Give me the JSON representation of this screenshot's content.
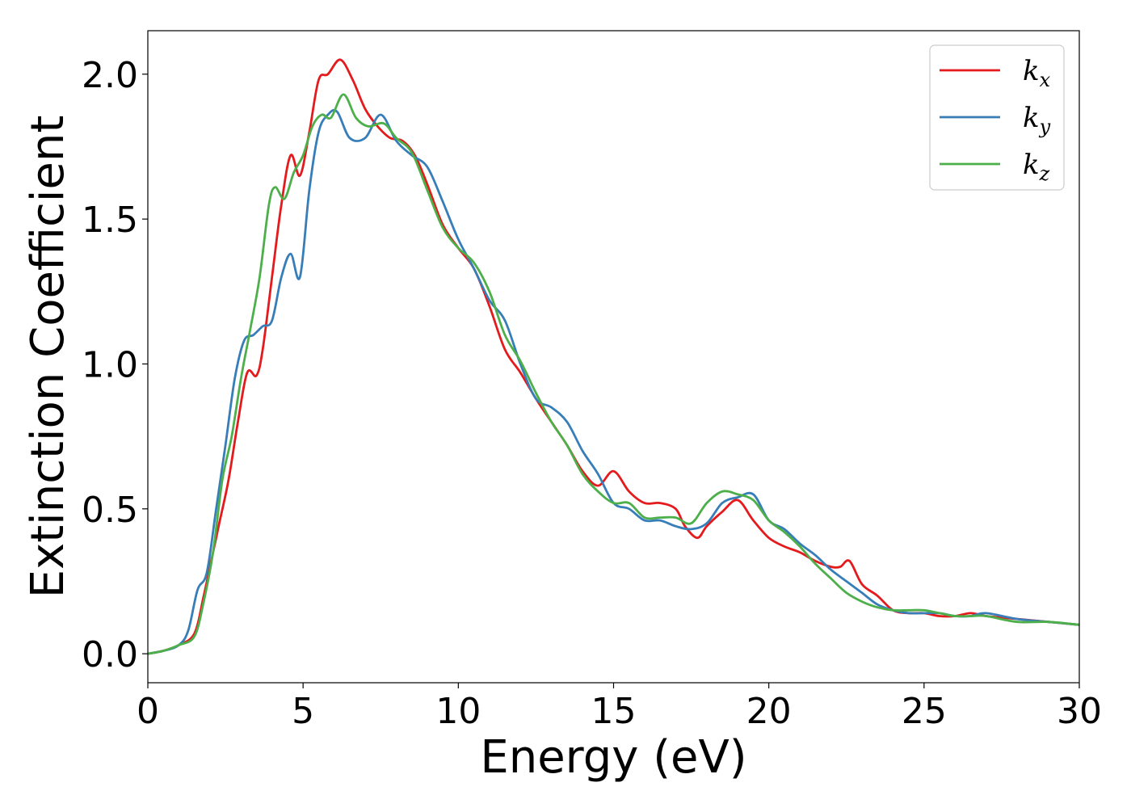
{
  "chart_data": {
    "type": "line",
    "xlabel": "Energy (eV)",
    "ylabel": "Extinction Coefficient",
    "xlim": [
      0,
      30
    ],
    "ylim": [
      -0.1,
      2.15
    ],
    "xticks": [
      0,
      5,
      10,
      15,
      20,
      25,
      30
    ],
    "xtick_labels": [
      "0",
      "5",
      "10",
      "15",
      "20",
      "25",
      "30"
    ],
    "yticks": [
      0.0,
      0.5,
      1.0,
      1.5,
      2.0
    ],
    "ytick_labels": [
      "0.0",
      "0.5",
      "1.0",
      "1.5",
      "2.0"
    ],
    "grid": false,
    "legend_position": "top-right",
    "series": [
      {
        "name": "k",
        "subscript": "x",
        "color": "#e41a1c",
        "x": [
          0,
          0.5,
          1.0,
          1.5,
          1.8,
          2.0,
          2.3,
          2.6,
          2.9,
          3.2,
          3.5,
          3.7,
          4.0,
          4.3,
          4.6,
          4.9,
          5.2,
          5.5,
          5.8,
          6.2,
          6.6,
          7.0,
          7.4,
          7.8,
          8.2,
          8.6,
          9.0,
          9.5,
          10.0,
          10.5,
          11.0,
          11.5,
          12.0,
          12.5,
          13.0,
          13.5,
          14.0,
          14.5,
          15.0,
          15.5,
          16.0,
          16.5,
          17.0,
          17.3,
          17.7,
          18.0,
          18.5,
          19.0,
          19.5,
          20.0,
          20.5,
          21.0,
          21.5,
          22.0,
          22.3,
          22.6,
          23.0,
          23.5,
          24.0,
          24.5,
          25.0,
          25.5,
          26.0,
          26.5,
          27.0,
          28.0,
          29.0,
          30.0
        ],
        "y": [
          0.0,
          0.01,
          0.03,
          0.07,
          0.2,
          0.3,
          0.45,
          0.6,
          0.8,
          0.97,
          0.96,
          1.05,
          1.3,
          1.55,
          1.72,
          1.65,
          1.8,
          1.98,
          2.0,
          2.05,
          1.98,
          1.88,
          1.82,
          1.78,
          1.77,
          1.72,
          1.62,
          1.48,
          1.4,
          1.33,
          1.2,
          1.05,
          0.97,
          0.88,
          0.8,
          0.72,
          0.63,
          0.58,
          0.63,
          0.56,
          0.52,
          0.52,
          0.5,
          0.44,
          0.4,
          0.44,
          0.49,
          0.53,
          0.46,
          0.4,
          0.37,
          0.35,
          0.32,
          0.3,
          0.3,
          0.32,
          0.24,
          0.2,
          0.15,
          0.14,
          0.14,
          0.13,
          0.13,
          0.14,
          0.13,
          0.12,
          0.11,
          0.1
        ]
      },
      {
        "name": "k",
        "subscript": "y",
        "color": "#377eb8",
        "x": [
          0,
          0.5,
          1.0,
          1.3,
          1.6,
          1.9,
          2.2,
          2.5,
          2.8,
          3.1,
          3.4,
          3.7,
          4.0,
          4.3,
          4.6,
          4.9,
          5.2,
          5.5,
          5.8,
          6.1,
          6.5,
          7.0,
          7.5,
          8.0,
          8.5,
          9.0,
          9.5,
          10.0,
          10.5,
          11.0,
          11.5,
          12.0,
          12.5,
          13.0,
          13.5,
          14.0,
          14.5,
          15.0,
          15.5,
          16.0,
          16.5,
          17.0,
          17.5,
          18.0,
          18.5,
          19.0,
          19.5,
          20.0,
          20.5,
          21.0,
          21.5,
          22.0,
          22.5,
          23.0,
          23.5,
          24.0,
          24.5,
          25.0,
          25.5,
          26.0,
          26.5,
          27.0,
          28.0,
          29.0,
          30.0
        ],
        "y": [
          0.0,
          0.01,
          0.03,
          0.08,
          0.22,
          0.28,
          0.5,
          0.72,
          0.95,
          1.08,
          1.1,
          1.13,
          1.15,
          1.3,
          1.38,
          1.3,
          1.6,
          1.8,
          1.86,
          1.87,
          1.78,
          1.78,
          1.86,
          1.77,
          1.72,
          1.68,
          1.56,
          1.43,
          1.33,
          1.22,
          1.15,
          1.0,
          0.88,
          0.85,
          0.8,
          0.7,
          0.62,
          0.52,
          0.5,
          0.46,
          0.46,
          0.44,
          0.43,
          0.45,
          0.52,
          0.54,
          0.55,
          0.46,
          0.43,
          0.38,
          0.34,
          0.29,
          0.25,
          0.21,
          0.17,
          0.15,
          0.14,
          0.14,
          0.14,
          0.13,
          0.13,
          0.14,
          0.12,
          0.11,
          0.1
        ]
      },
      {
        "name": "k",
        "subscript": "z",
        "color": "#4daf4a",
        "x": [
          0,
          0.5,
          1.0,
          1.5,
          1.8,
          2.1,
          2.4,
          2.7,
          3.0,
          3.3,
          3.6,
          3.9,
          4.1,
          4.4,
          4.7,
          5.0,
          5.3,
          5.6,
          5.9,
          6.3,
          6.7,
          7.1,
          7.6,
          8.0,
          8.5,
          9.0,
          9.5,
          10.0,
          10.5,
          11.0,
          11.5,
          12.0,
          12.5,
          13.0,
          13.5,
          14.0,
          14.5,
          15.0,
          15.5,
          16.0,
          16.5,
          17.0,
          17.5,
          18.0,
          18.5,
          19.0,
          19.5,
          20.0,
          20.5,
          21.0,
          21.5,
          22.0,
          22.5,
          23.0,
          23.5,
          24.0,
          24.5,
          25.0,
          25.5,
          26.0,
          26.5,
          27.0,
          28.0,
          29.0,
          30.0
        ],
        "y": [
          0.0,
          0.01,
          0.03,
          0.06,
          0.18,
          0.35,
          0.6,
          0.75,
          0.95,
          1.12,
          1.3,
          1.55,
          1.61,
          1.57,
          1.66,
          1.72,
          1.82,
          1.86,
          1.85,
          1.93,
          1.85,
          1.82,
          1.83,
          1.78,
          1.73,
          1.6,
          1.47,
          1.4,
          1.35,
          1.25,
          1.1,
          1.01,
          0.9,
          0.8,
          0.72,
          0.62,
          0.56,
          0.52,
          0.52,
          0.47,
          0.47,
          0.47,
          0.45,
          0.52,
          0.56,
          0.55,
          0.53,
          0.46,
          0.42,
          0.37,
          0.31,
          0.26,
          0.21,
          0.18,
          0.16,
          0.15,
          0.15,
          0.15,
          0.14,
          0.13,
          0.13,
          0.13,
          0.11,
          0.11,
          0.1
        ]
      }
    ]
  }
}
